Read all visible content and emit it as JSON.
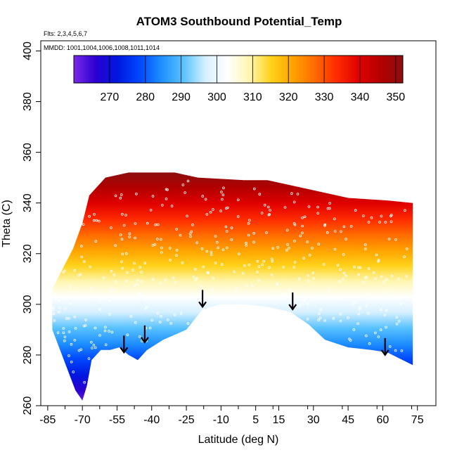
{
  "chart_data": {
    "type": "scatter",
    "title": "ATOM3 Southbound Potential_Temp",
    "flights_note": "Flts: 2,3,4,5,6,7",
    "dates_note": "MMDD: 1001,1004,1006,1008,1011,1014",
    "xlabel": "Latitude (deg N)",
    "ylabel": "Theta (C)",
    "xlim": [
      -88,
      83
    ],
    "ylim": [
      260,
      404
    ],
    "x_ticks": [
      "-85",
      "-70",
      "-55",
      "-40",
      "-25",
      "-10",
      "5",
      "15",
      "30",
      "45",
      "60",
      "75"
    ],
    "x_tick_values": [
      -85,
      -70,
      -55,
      -40,
      -25,
      -10,
      5,
      15,
      30,
      45,
      60,
      75
    ],
    "y_ticks": [
      "260",
      "280",
      "300",
      "320",
      "340",
      "360",
      "380",
      "400"
    ],
    "y_tick_values": [
      260,
      280,
      300,
      320,
      340,
      360,
      380,
      400
    ],
    "colorbar": {
      "min": 260,
      "max": 352,
      "ticks": [
        "270",
        "280",
        "290",
        "300",
        "310",
        "320",
        "330",
        "340",
        "350"
      ],
      "tick_values": [
        270,
        280,
        290,
        300,
        310,
        320,
        330,
        340,
        350
      ],
      "colors": [
        "#7b2be8",
        "#2a00d0",
        "#0018e0",
        "#0048ff",
        "#1f90ff",
        "#59c2ff",
        "#d6f0ff",
        "#ffffff",
        "#fff6b0",
        "#ffd21a",
        "#ffa200",
        "#ff6a00",
        "#ff2a00",
        "#e00000",
        "#b30000",
        "#8c0e0e"
      ]
    },
    "tropopause_arrows": [
      {
        "lat": -52,
        "theta": 286
      },
      {
        "lat": -43,
        "theta": 290
      },
      {
        "lat": -18,
        "theta": 304
      },
      {
        "lat": 21,
        "theta": 303
      },
      {
        "lat": 61,
        "theta": 285
      }
    ],
    "region_lower_edge": [
      [
        -83,
        290
      ],
      [
        -78,
        278
      ],
      [
        -73,
        266
      ],
      [
        -70,
        262
      ],
      [
        -68,
        268
      ],
      [
        -66,
        278
      ],
      [
        -62,
        282
      ],
      [
        -58,
        282
      ],
      [
        -54,
        283
      ],
      [
        -50,
        280
      ],
      [
        -46,
        278
      ],
      [
        -42,
        282
      ],
      [
        -35,
        286
      ],
      [
        -25,
        290
      ],
      [
        -18,
        298
      ],
      [
        -10,
        300
      ],
      [
        0,
        300
      ],
      [
        10,
        299
      ],
      [
        20,
        297
      ],
      [
        28,
        292
      ],
      [
        35,
        286
      ],
      [
        45,
        283
      ],
      [
        55,
        282
      ],
      [
        62,
        281
      ],
      [
        73,
        276
      ]
    ],
    "region_upper_edge": [
      [
        -83,
        306
      ],
      [
        -78,
        315
      ],
      [
        -74,
        322
      ],
      [
        -70,
        332
      ],
      [
        -67,
        343
      ],
      [
        -60,
        350
      ],
      [
        -50,
        352
      ],
      [
        -30,
        352
      ],
      [
        -20,
        350
      ],
      [
        0,
        349
      ],
      [
        10,
        349
      ],
      [
        25,
        346
      ],
      [
        45,
        342
      ],
      [
        62,
        341
      ],
      [
        73,
        340
      ]
    ]
  }
}
